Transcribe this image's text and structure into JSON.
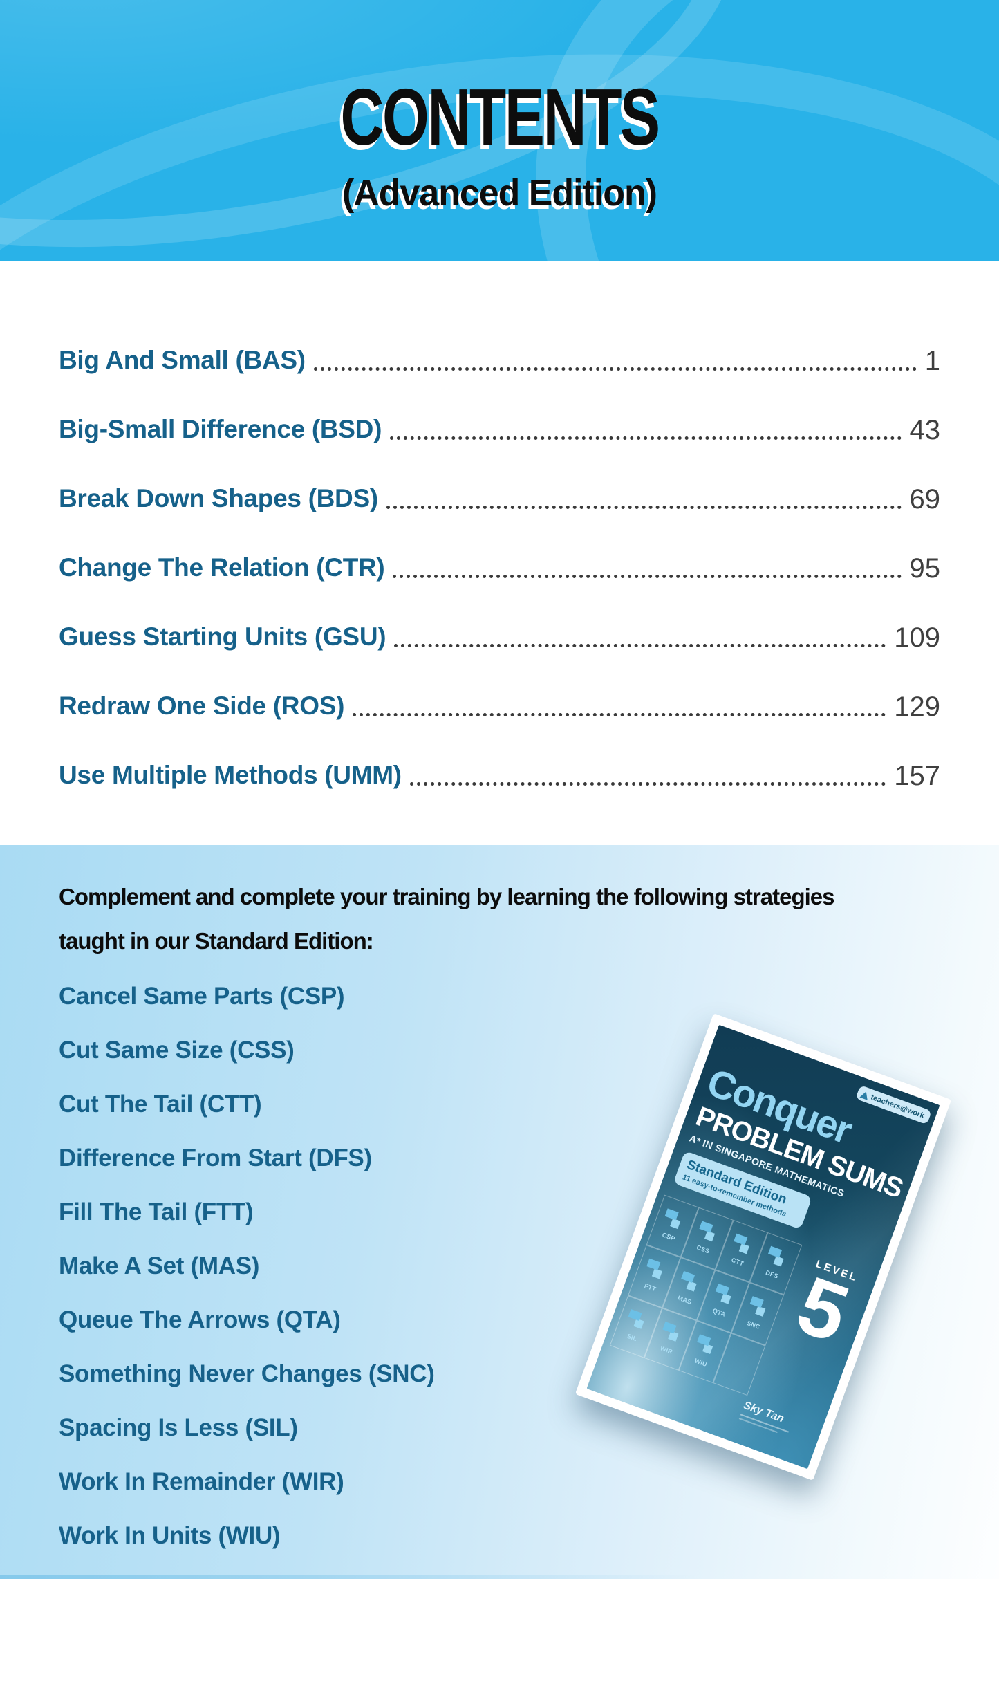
{
  "header": {
    "title": "CONTENTS",
    "subtitle": "(Advanced Edition)"
  },
  "toc": {
    "entries": [
      {
        "label": "Big And Small (BAS)",
        "page": "1"
      },
      {
        "label": "Big-Small Difference (BSD)",
        "page": "43"
      },
      {
        "label": "Break Down Shapes (BDS)",
        "page": "69"
      },
      {
        "label": "Change The Relation (CTR)",
        "page": "95"
      },
      {
        "label": "Guess Starting Units (GSU)",
        "page": "109"
      },
      {
        "label": "Redraw One Side (ROS)",
        "page": "129"
      },
      {
        "label": "Use Multiple Methods (UMM)",
        "page": "157"
      }
    ]
  },
  "promo": {
    "intro_line1": "Complement and complete your training by learning the following strategies",
    "intro_line2": "taught in our Standard Edition:",
    "strategies": [
      "Cancel Same Parts (CSP)",
      "Cut Same Size (CSS)",
      "Cut The Tail (CTT)",
      "Difference From Start (DFS)",
      "Fill The Tail (FTT)",
      "Make A Set (MAS)",
      "Queue The Arrows (QTA)",
      "Something Never Changes (SNC)",
      "Spacing Is Less (SIL)",
      "Work In Remainder (WIR)",
      "Work In Units (WIU)"
    ]
  },
  "cover": {
    "brand": "Conquer",
    "title": "PROBLEM SUMS",
    "subtitle": "A* IN SINGAPORE MATHEMATICS",
    "edition_badge": "Standard Edition",
    "edition_note": "11 easy-to-remember methods",
    "level_label": "LEVEL",
    "level_number": "5",
    "publisher": "teachers@work",
    "author": "Sky Tan",
    "method_labels": [
      "CSP",
      "CSS",
      "CTT",
      "DFS",
      "FTT",
      "MAS",
      "QTA",
      "SNC",
      "SIL",
      "WIR",
      "WIU"
    ]
  },
  "colors": {
    "header_cyan": "#29b2e8",
    "toc_teal": "#16618a",
    "page_number_gray": "#3f3f3f",
    "panel_blue": "#a9dbf3",
    "cover_teal": "#14485f"
  }
}
